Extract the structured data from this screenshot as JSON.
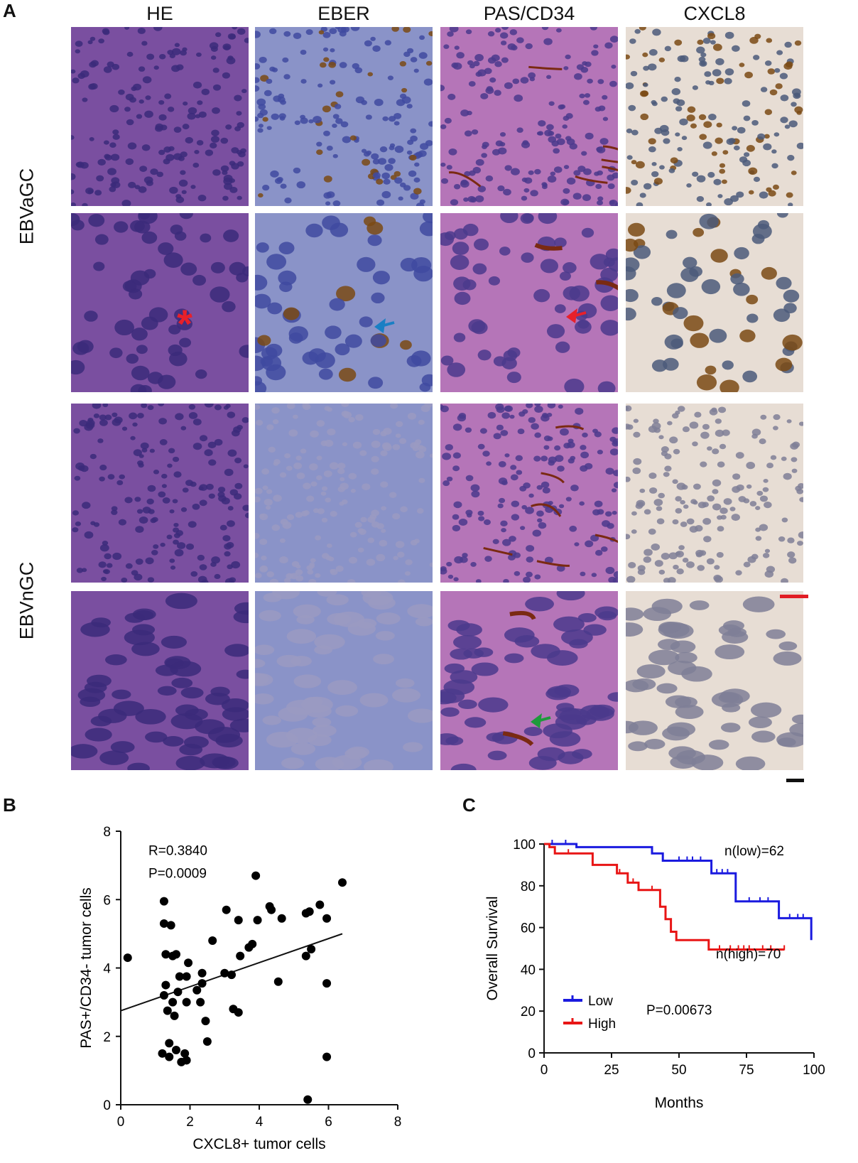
{
  "panel_a": {
    "letter": "A",
    "columns": [
      "HE",
      "EBER",
      "PAS/CD34",
      "CXCL8"
    ],
    "row_groups": [
      "EBVaGC",
      "EBVnGC"
    ],
    "stain_colors": {
      "HE": "#7a4fa0",
      "EBER": "#8a93c8",
      "PAS/CD34": "#b575b8",
      "CXCL8": "#e7ddd4"
    },
    "markers": {
      "asterisk": "*",
      "arrow_colors": {
        "eber": "#1a7fc4",
        "pas": "#e8202a",
        "pas_nGC": "#1e9a3c"
      }
    },
    "scalebar_colors": {
      "low_mag": "#e11d24",
      "high_mag": "#111111"
    }
  },
  "panel_b": {
    "letter": "B"
  },
  "panel_c": {
    "letter": "C"
  },
  "chart_data": [
    {
      "type": "scatter",
      "xlabel": "CXCL8+ tumor cells",
      "ylabel": "PAS+/CD34- tumor cells",
      "xlim": [
        0,
        8
      ],
      "ylim": [
        0,
        8
      ],
      "xticks": [
        0,
        2,
        4,
        6,
        8
      ],
      "yticks": [
        0,
        2,
        4,
        6,
        8
      ],
      "annotations": [
        "R=0.3840",
        "P=0.0009"
      ],
      "regression": {
        "x": [
          0,
          6.4
        ],
        "y": [
          2.75,
          5.0
        ]
      },
      "points": [
        [
          0.2,
          4.3
        ],
        [
          1.2,
          1.5
        ],
        [
          1.25,
          5.95
        ],
        [
          1.25,
          5.3
        ],
        [
          1.3,
          4.4
        ],
        [
          1.3,
          3.5
        ],
        [
          1.25,
          3.2
        ],
        [
          1.35,
          2.75
        ],
        [
          1.4,
          1.8
        ],
        [
          1.4,
          1.4
        ],
        [
          1.45,
          5.25
        ],
        [
          1.5,
          4.35
        ],
        [
          1.5,
          3.0
        ],
        [
          1.55,
          2.6
        ],
        [
          1.6,
          1.6
        ],
        [
          1.6,
          4.4
        ],
        [
          1.65,
          3.3
        ],
        [
          1.7,
          3.75
        ],
        [
          1.75,
          1.25
        ],
        [
          1.85,
          1.5
        ],
        [
          1.9,
          1.3
        ],
        [
          1.9,
          3.75
        ],
        [
          1.95,
          4.15
        ],
        [
          1.9,
          3.0
        ],
        [
          2.2,
          3.35
        ],
        [
          2.3,
          3.0
        ],
        [
          2.35,
          3.55
        ],
        [
          2.35,
          3.85
        ],
        [
          2.45,
          2.45
        ],
        [
          2.5,
          1.85
        ],
        [
          2.65,
          4.8
        ],
        [
          3.0,
          3.85
        ],
        [
          3.05,
          5.7
        ],
        [
          3.2,
          3.8
        ],
        [
          3.25,
          2.8
        ],
        [
          3.4,
          2.7
        ],
        [
          3.4,
          5.4
        ],
        [
          3.45,
          4.35
        ],
        [
          3.7,
          4.6
        ],
        [
          3.8,
          4.7
        ],
        [
          3.9,
          6.7
        ],
        [
          3.95,
          5.4
        ],
        [
          4.3,
          5.8
        ],
        [
          4.35,
          5.7
        ],
        [
          4.55,
          3.6
        ],
        [
          4.65,
          5.45
        ],
        [
          5.35,
          5.6
        ],
        [
          5.35,
          4.35
        ],
        [
          5.45,
          5.65
        ],
        [
          5.4,
          0.15
        ],
        [
          5.5,
          4.55
        ],
        [
          5.75,
          5.85
        ],
        [
          5.95,
          5.45
        ],
        [
          5.95,
          3.55
        ],
        [
          6.4,
          6.5
        ],
        [
          5.95,
          1.4
        ]
      ]
    },
    {
      "type": "line",
      "step": true,
      "xlabel": "Months",
      "ylabel": "Overall Survival",
      "xlim": [
        0,
        100
      ],
      "ylim": [
        0,
        100
      ],
      "xticks": [
        0,
        25,
        50,
        75,
        100
      ],
      "yticks": [
        0,
        20,
        40,
        60,
        80,
        100
      ],
      "annotations": [
        "n(low)=62",
        "n(high)=70",
        "P=0.00673"
      ],
      "legend": {
        "position": "bottom-left",
        "entries": [
          "Low",
          "High"
        ]
      },
      "series": [
        {
          "name": "Low",
          "color": "#1a1adf",
          "steps": [
            [
              0,
              100
            ],
            [
              12,
              100
            ],
            [
              12,
              98.5
            ],
            [
              40,
              98.5
            ],
            [
              40,
              95.5
            ],
            [
              44,
              95.5
            ],
            [
              44,
              92
            ],
            [
              62,
              92
            ],
            [
              62,
              86
            ],
            [
              71,
              86
            ],
            [
              71,
              72.5
            ],
            [
              87,
              72.5
            ],
            [
              87,
              64.5
            ],
            [
              99,
              64.5
            ],
            [
              99,
              54
            ]
          ],
          "censors": [
            [
              3,
              100
            ],
            [
              8,
              100
            ],
            [
              50,
              92
            ],
            [
              53,
              92
            ],
            [
              55,
              92
            ],
            [
              58,
              92
            ],
            [
              64,
              86
            ],
            [
              66,
              86
            ],
            [
              68,
              86
            ],
            [
              76,
              72.5
            ],
            [
              80,
              72.5
            ],
            [
              83,
              72.5
            ],
            [
              91,
              64.5
            ],
            [
              94,
              64.5
            ],
            [
              96,
              64.5
            ]
          ]
        },
        {
          "name": "High",
          "color": "#e81515",
          "steps": [
            [
              0,
              100
            ],
            [
              2,
              100
            ],
            [
              2,
              98.5
            ],
            [
              4,
              98.5
            ],
            [
              4,
              95.5
            ],
            [
              18,
              95.5
            ],
            [
              18,
              90
            ],
            [
              27,
              90
            ],
            [
              27,
              86
            ],
            [
              31,
              86
            ],
            [
              31,
              81.5
            ],
            [
              35,
              81.5
            ],
            [
              35,
              78
            ],
            [
              43,
              78
            ],
            [
              43,
              70
            ],
            [
              45,
              70
            ],
            [
              45,
              64
            ],
            [
              47,
              64
            ],
            [
              47,
              58
            ],
            [
              49,
              58
            ],
            [
              49,
              54
            ],
            [
              61,
              54
            ],
            [
              61,
              49.5
            ],
            [
              89,
              49.5
            ]
          ],
          "censors": [
            [
              9,
              95.5
            ],
            [
              28,
              86
            ],
            [
              33,
              81.5
            ],
            [
              40,
              78
            ],
            [
              65,
              49.5
            ],
            [
              69,
              49.5
            ],
            [
              72,
              49.5
            ],
            [
              74,
              49.5
            ],
            [
              76,
              49.5
            ],
            [
              81,
              49.5
            ],
            [
              84,
              49.5
            ],
            [
              89,
              49.5
            ]
          ]
        }
      ]
    }
  ]
}
